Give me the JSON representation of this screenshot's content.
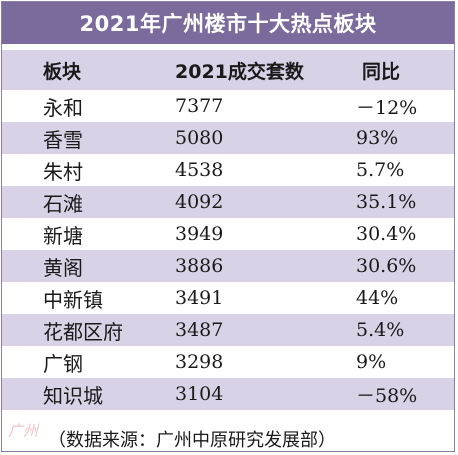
{
  "title": "2021年广州楼市十大热点板块",
  "headers": {
    "col1": "板块",
    "col2": "2021成交套数",
    "col3": "同比"
  },
  "rows": [
    {
      "name": "永和",
      "count": "7377",
      "yoy": "－12%"
    },
    {
      "name": "香雪",
      "count": "5080",
      "yoy": "93%"
    },
    {
      "name": "朱村",
      "count": "4538",
      "yoy": "5.7%"
    },
    {
      "name": "石滩",
      "count": "4092",
      "yoy": "35.1%"
    },
    {
      "name": "新塘",
      "count": "3949",
      "yoy": "30.4%"
    },
    {
      "name": "黄阁",
      "count": "3886",
      "yoy": "30.6%"
    },
    {
      "name": "中新镇",
      "count": "3491",
      "yoy": "44%"
    },
    {
      "name": "花都区府",
      "count": "3487",
      "yoy": "5.4%"
    },
    {
      "name": "广钢",
      "count": "3298",
      "yoy": "9%"
    },
    {
      "name": "知识城",
      "count": "3104",
      "yoy": "－58%"
    }
  ],
  "source": "（数据来源：广州中原研究发展部）",
  "watermark": "广州",
  "colors": {
    "title_bg": "#7b6a9c",
    "stripe": "#d9d1e6"
  }
}
